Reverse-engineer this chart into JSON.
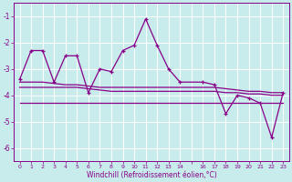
{
  "xlabel": "Windchill (Refroidissement éolien,°C)",
  "background_color": "#c8ecec",
  "grid_color": "#b0d8d8",
  "line_color": "#880088",
  "x_values": [
    0,
    1,
    2,
    3,
    4,
    5,
    6,
    7,
    8,
    9,
    10,
    11,
    12,
    13,
    14,
    16,
    17,
    18,
    19,
    20,
    21,
    22,
    23
  ],
  "x_tick_labels": [
    "0",
    "1",
    "2",
    "3",
    "4",
    "5",
    "6",
    "7",
    "8",
    "9",
    "10",
    "11",
    "12",
    "13",
    "14",
    "",
    "16",
    "17",
    "18",
    "19",
    "20",
    "21",
    "22",
    "23"
  ],
  "ylim": [
    -6.5,
    -0.5
  ],
  "xlim": [
    -0.5,
    23.5
  ],
  "yticks": [
    -6,
    -5,
    -4,
    -3,
    -2,
    -1
  ],
  "series1_y": [
    -3.4,
    -2.3,
    -2.3,
    -3.5,
    -2.5,
    -2.5,
    -3.9,
    -3.0,
    -3.1,
    -2.3,
    -2.1,
    -1.1,
    -2.1,
    -3.0,
    -3.5,
    -3.5,
    -3.6,
    -4.7,
    -4.0,
    -4.1,
    -4.3,
    -5.6,
    -3.9
  ],
  "series2_y": [
    -4.3,
    -4.3,
    -4.3,
    -4.3,
    -4.3,
    -4.3,
    -4.3,
    -4.3,
    -4.3,
    -4.3,
    -4.3,
    -4.3,
    -4.3,
    -4.3,
    -4.3,
    -4.3,
    -4.3,
    -4.3,
    -4.3,
    -4.3,
    -4.3,
    -4.3,
    -4.3
  ],
  "series3_y": [
    -3.7,
    -3.7,
    -3.7,
    -3.7,
    -3.7,
    -3.7,
    -3.75,
    -3.8,
    -3.85,
    -3.85,
    -3.85,
    -3.85,
    -3.85,
    -3.85,
    -3.85,
    -3.85,
    -3.85,
    -3.9,
    -3.9,
    -3.95,
    -3.95,
    -4.0,
    -4.0
  ],
  "series4_y": [
    -3.5,
    -3.5,
    -3.5,
    -3.55,
    -3.6,
    -3.6,
    -3.65,
    -3.7,
    -3.7,
    -3.7,
    -3.7,
    -3.7,
    -3.7,
    -3.7,
    -3.7,
    -3.7,
    -3.7,
    -3.75,
    -3.8,
    -3.85,
    -3.85,
    -3.9,
    -3.9
  ]
}
